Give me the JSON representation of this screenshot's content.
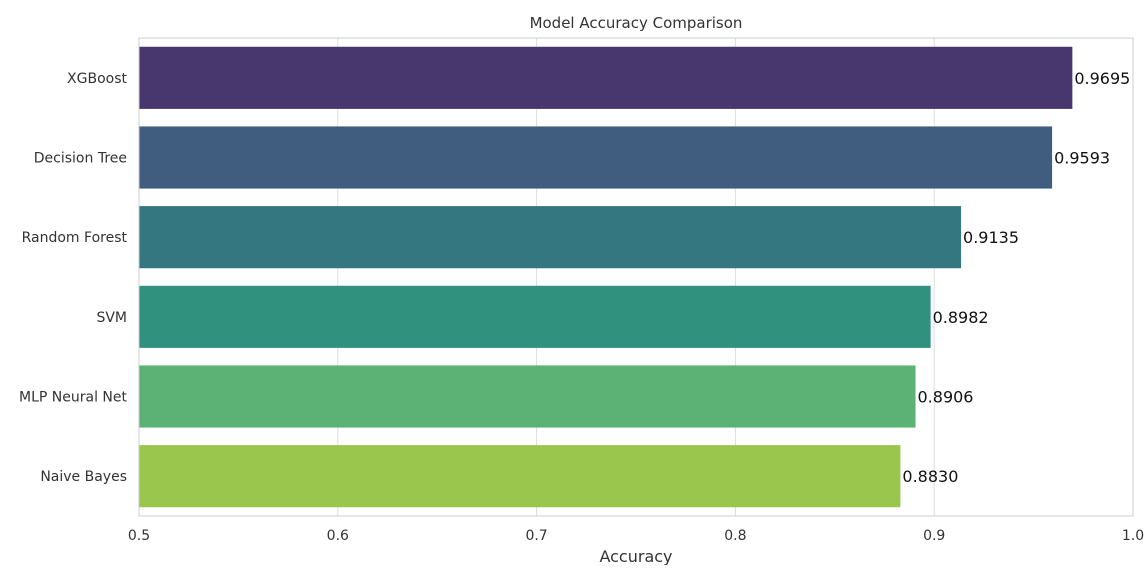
{
  "chart_data": {
    "type": "bar",
    "orientation": "horizontal",
    "title": "Model Accuracy Comparison",
    "xlabel": "Accuracy",
    "ylabel": "",
    "xlim": [
      0.5,
      1.0
    ],
    "x_ticks": [
      0.5,
      0.6,
      0.7,
      0.8,
      0.9,
      1.0
    ],
    "x_tick_labels": [
      "0.5",
      "0.6",
      "0.7",
      "0.8",
      "0.9",
      "1.0"
    ],
    "grid": true,
    "categories": [
      "XGBoost",
      "Decision Tree",
      "Random Forest",
      "SVM",
      "MLP Neural Net",
      "Naive Bayes"
    ],
    "values": [
      0.9695,
      0.9593,
      0.9135,
      0.8982,
      0.8906,
      0.883
    ],
    "value_labels": [
      "0.9695",
      "0.9593",
      "0.9135",
      "0.8982",
      "0.8906",
      "0.8830"
    ],
    "colors": [
      "#48366f",
      "#405d80",
      "#347780",
      "#2f917e",
      "#5cb174",
      "#9ac64d"
    ]
  }
}
